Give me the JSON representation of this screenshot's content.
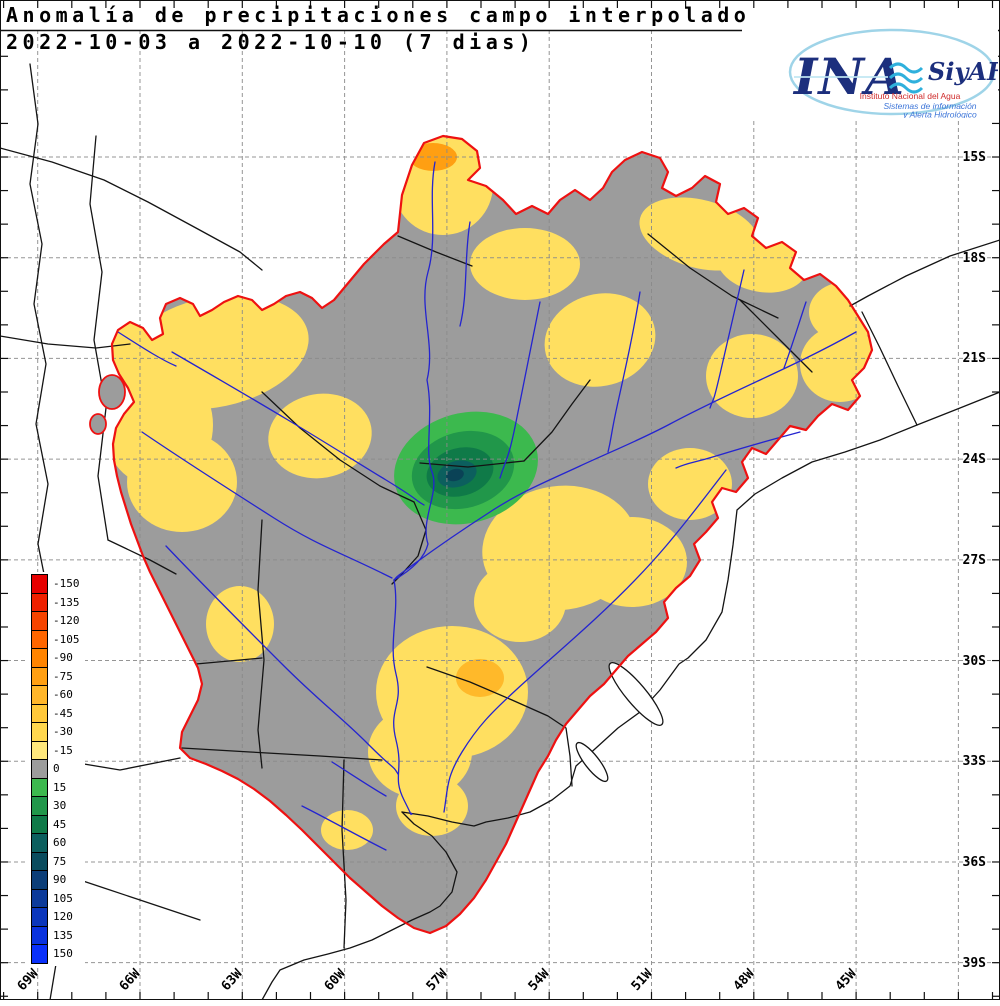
{
  "title": {
    "line1": "Anomalía de precipitaciones campo interpolado",
    "line2": "2022-10-03 a 2022-10-10 (7 dias)"
  },
  "logo": {
    "acronym": "INA",
    "program": "SiyAH",
    "line1": "Instituto Nacional del Agua",
    "line2": "Sistemas de información",
    "line3": "y Alerta Hidrológico"
  },
  "legend": {
    "entries": [
      {
        "label": "-150",
        "color": "#e60000"
      },
      {
        "label": "-135",
        "color": "#ef2000"
      },
      {
        "label": "-120",
        "color": "#f64400"
      },
      {
        "label": "-105",
        "color": "#ff6600"
      },
      {
        "label": "-90",
        "color": "#ff8400"
      },
      {
        "label": "-75",
        "color": "#ff9f12"
      },
      {
        "label": "-60",
        "color": "#ffb62a"
      },
      {
        "label": "-45",
        "color": "#ffc83a"
      },
      {
        "label": "-30",
        "color": "#ffd74e"
      },
      {
        "label": "-15",
        "color": "#ffe87c"
      },
      {
        "label": "0",
        "color": "#9c9c9c"
      },
      {
        "label": "15",
        "color": "#3cb94e"
      },
      {
        "label": "30",
        "color": "#21974a"
      },
      {
        "label": "45",
        "color": "#0f7a48"
      },
      {
        "label": "60",
        "color": "#0c5f5e"
      },
      {
        "label": "75",
        "color": "#0a4c5e"
      },
      {
        "label": "90",
        "color": "#0c3e78"
      },
      {
        "label": "105",
        "color": "#0c3a9a"
      },
      {
        "label": "120",
        "color": "#0b36bc"
      },
      {
        "label": "135",
        "color": "#0a32de"
      },
      {
        "label": "150",
        "color": "#0a30fa"
      }
    ]
  },
  "axes": {
    "lat_labels": [
      "15S",
      "18S",
      "21S",
      "24S",
      "27S",
      "30S",
      "33S",
      "36S",
      "39S"
    ],
    "lon_labels": [
      "69W",
      "66W",
      "63W",
      "60W",
      "57W",
      "54W",
      "51W",
      "48W",
      "45W"
    ]
  },
  "map": {
    "colors": {
      "zero": "#9c9c9c",
      "yellow": "#ffdf60",
      "orange": "#ffb92a",
      "orange_deep": "#ff9f12",
      "green1": "#3cb94e",
      "green2": "#21974a",
      "green3": "#0f7a48",
      "teal1": "#0c5f5e",
      "teal2": "#0a4256",
      "river": "#2424d0",
      "border": "#141414",
      "outline": "#ee1111",
      "grid": "#8a8a8a"
    }
  }
}
